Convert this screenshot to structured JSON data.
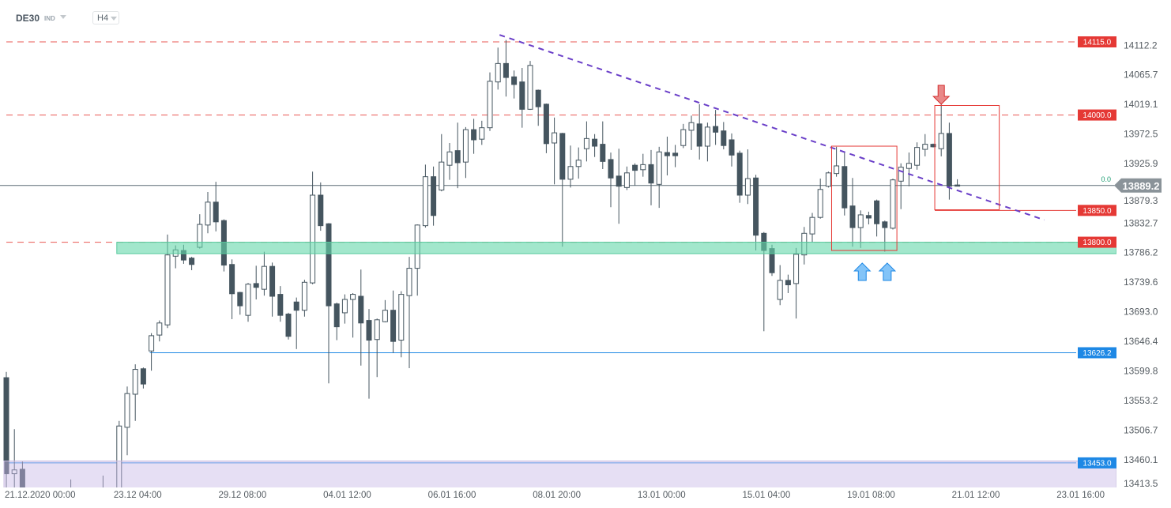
{
  "header": {
    "symbol": "DE30",
    "symbol_type": "IND",
    "timeframe": "H4"
  },
  "colors": {
    "bull_fill": "#ffffff",
    "candle": "#45555f",
    "resistance": "#e53935",
    "support_blue": "#1e88e5",
    "green_zone": "#64d7aa",
    "purple_zone": "#c8b9e6",
    "trendline": "#6a3fc8",
    "price_tag": "#8a9399",
    "current_line": "#1f9e74"
  },
  "chart_data": {
    "type": "candlestick",
    "instrument": "DE30",
    "timeframe": "H4",
    "ylim": [
      13413.5,
      14130
    ],
    "y_ticks": [
      "14112.2",
      "14065.7",
      "14019.1",
      "13972.5",
      "13925.9",
      "13879.3",
      "13832.7",
      "13786.2",
      "13739.6",
      "13693.0",
      "13646.4",
      "13599.8",
      "13553.2",
      "13506.7",
      "13460.1",
      "13413.5"
    ],
    "x_ticks": [
      {
        "index": 3.3,
        "label": "21.12.2020  00:00"
      },
      {
        "index": 16.3,
        "label": "23.12  04:00"
      },
      {
        "index": 29.3,
        "label": "29.12  08:00"
      },
      {
        "index": 42.3,
        "label": "04.01  12:00"
      },
      {
        "index": 55.3,
        "label": "06.01  16:00"
      },
      {
        "index": 68.3,
        "label": "08.01  20:00"
      },
      {
        "index": 81.3,
        "label": "13.01  00:00"
      },
      {
        "index": 94.3,
        "label": "15.01  04:00"
      },
      {
        "index": 107.3,
        "label": "19.01  08:00"
      },
      {
        "index": 120.3,
        "label": "21.01  12:00"
      },
      {
        "index": 133.3,
        "label": "23.01  16:00"
      }
    ],
    "ohlc_fields": [
      "open",
      "high",
      "low",
      "close"
    ],
    "candles": [
      [
        13587,
        13596,
        13410,
        13436
      ],
      [
        13436,
        13506,
        13410,
        13442
      ],
      [
        13443,
        13455,
        13390,
        13400
      ],
      [
        13400,
        13412,
        13380,
        13392
      ],
      [
        13392,
        13405,
        13375,
        13398
      ],
      [
        13398,
        13410,
        13385,
        13388
      ],
      [
        13388,
        13400,
        13370,
        13395
      ],
      [
        13395,
        13408,
        13380,
        13385
      ],
      [
        13385,
        13427,
        13372,
        13396
      ],
      [
        13396,
        13410,
        13380,
        13390
      ],
      [
        13390,
        13405,
        13375,
        13400
      ],
      [
        13400,
        13412,
        13385,
        13392
      ],
      [
        13392,
        13433,
        13378,
        13386
      ],
      [
        13386,
        13400,
        13370,
        13380
      ],
      [
        13380,
        13519,
        13370,
        13511
      ],
      [
        13509,
        13573,
        13465,
        13562
      ],
      [
        13561,
        13608,
        13519,
        13600
      ],
      [
        13601,
        13603,
        13570,
        13577
      ],
      [
        13629,
        13657,
        13598,
        13653
      ],
      [
        13654,
        13677,
        13644,
        13673
      ],
      [
        13670,
        13812,
        13665,
        13780
      ],
      [
        13778,
        13795,
        13759,
        13788
      ],
      [
        13787,
        13796,
        13766,
        13772
      ],
      [
        13775,
        13777,
        13756,
        13765
      ],
      [
        13792,
        13844,
        13790,
        13828
      ],
      [
        13827,
        13879,
        13814,
        13863
      ],
      [
        13863,
        13895,
        13817,
        13832
      ],
      [
        13834,
        13836,
        13754,
        13764
      ],
      [
        13765,
        13773,
        13679,
        13719
      ],
      [
        13721,
        13722,
        13686,
        13700
      ],
      [
        13685,
        13736,
        13675,
        13734
      ],
      [
        13735,
        13763,
        13710,
        13729
      ],
      [
        13726,
        13785,
        13716,
        13762
      ],
      [
        13762,
        13768,
        13683,
        13715
      ],
      [
        13718,
        13731,
        13675,
        13685
      ],
      [
        13687,
        13689,
        13647,
        13652
      ],
      [
        13706,
        13713,
        13632,
        13693
      ],
      [
        13693,
        13741,
        13683,
        13737
      ],
      [
        13736,
        13911,
        13734,
        13874
      ],
      [
        13874,
        13894,
        13818,
        13826
      ],
      [
        13829,
        13830,
        13578,
        13700
      ],
      [
        13703,
        13705,
        13646,
        13667
      ],
      [
        13689,
        13718,
        13672,
        13710
      ],
      [
        13710,
        13720,
        13650,
        13718
      ],
      [
        13715,
        13757,
        13606,
        13673
      ],
      [
        13677,
        13695,
        13554,
        13646
      ],
      [
        13647,
        13680,
        13588,
        13678
      ],
      [
        13675,
        13709,
        13674,
        13693
      ],
      [
        13693,
        13724,
        13626,
        13644
      ],
      [
        13646,
        13723,
        13619,
        13718
      ],
      [
        13716,
        13777,
        13602,
        13759
      ],
      [
        13759,
        13828,
        13716,
        13827
      ],
      [
        13826,
        13922,
        13823,
        13903
      ],
      [
        13903,
        13919,
        13826,
        13842
      ],
      [
        13882,
        13970,
        13880,
        13926
      ],
      [
        13921,
        13956,
        13898,
        13942
      ],
      [
        13944,
        13988,
        13885,
        13925
      ],
      [
        13926,
        13981,
        13901,
        13977
      ],
      [
        13977,
        13994,
        13939,
        13961
      ],
      [
        13962,
        13991,
        13953,
        13980
      ],
      [
        13980,
        14067,
        13975,
        14053
      ],
      [
        14052,
        14106,
        14040,
        14081
      ],
      [
        14081,
        14118,
        14029,
        14059
      ],
      [
        14060,
        14070,
        14026,
        14048
      ],
      [
        14052,
        14074,
        13980,
        14009
      ],
      [
        14009,
        14085,
        14008,
        14078
      ],
      [
        14039,
        14040,
        13983,
        14013
      ],
      [
        14017,
        14018,
        13940,
        13955
      ],
      [
        13956,
        13996,
        13891,
        13972
      ],
      [
        13971,
        13972,
        13793,
        13899
      ],
      [
        13899,
        13952,
        13886,
        13919
      ],
      [
        13919,
        13949,
        13900,
        13929
      ],
      [
        13947,
        13990,
        13927,
        13963
      ],
      [
        13962,
        13970,
        13934,
        13951
      ],
      [
        13954,
        13990,
        13915,
        13927
      ],
      [
        13930,
        13941,
        13855,
        13901
      ],
      [
        13904,
        13947,
        13829,
        13888
      ],
      [
        13886,
        13919,
        13882,
        13909
      ],
      [
        13921,
        13924,
        13889,
        13913
      ],
      [
        13914,
        13939,
        13903,
        13922
      ],
      [
        13922,
        13945,
        13858,
        13893
      ],
      [
        13891,
        13950,
        13854,
        13942
      ],
      [
        13941,
        13966,
        13905,
        13936
      ],
      [
        13940,
        13953,
        13918,
        13936
      ],
      [
        13952,
        13986,
        13948,
        13977
      ],
      [
        13976,
        13999,
        13945,
        13988
      ],
      [
        13986,
        14017,
        13930,
        13951
      ],
      [
        13951,
        13988,
        13927,
        13981
      ],
      [
        13982,
        14008,
        13953,
        13973
      ],
      [
        13975,
        13989,
        13946,
        13952
      ],
      [
        13961,
        13971,
        13919,
        13937
      ],
      [
        13940,
        13944,
        13862,
        13874
      ],
      [
        13874,
        13946,
        13860,
        13900
      ],
      [
        13901,
        13906,
        13787,
        13811
      ],
      [
        13814,
        13816,
        13660,
        13787
      ],
      [
        13790,
        13796,
        13747,
        13752
      ],
      [
        13710,
        13764,
        13701,
        13740
      ],
      [
        13740,
        13749,
        13720,
        13733
      ],
      [
        13735,
        13791,
        13680,
        13781
      ],
      [
        13780,
        13824,
        13765,
        13814
      ],
      [
        13813,
        13846,
        13800,
        13839
      ],
      [
        13839,
        13900,
        13837,
        13883
      ],
      [
        13888,
        13911,
        13886,
        13909
      ],
      [
        13908,
        13950,
        13903,
        13920
      ],
      [
        13919,
        13941,
        13842,
        13854
      ],
      [
        13857,
        13901,
        13793,
        13823
      ],
      [
        13823,
        13850,
        13791,
        13843
      ],
      [
        13842,
        13848,
        13828,
        13838
      ],
      [
        13865,
        13867,
        13809,
        13829
      ],
      [
        13832,
        13834,
        13785,
        13823
      ],
      [
        13822,
        13900,
        13820,
        13898
      ],
      [
        13896,
        13924,
        13852,
        13918
      ],
      [
        13916,
        13941,
        13888,
        13924
      ],
      [
        13921,
        13957,
        13914,
        13949
      ],
      [
        13946,
        13970,
        13935,
        13954
      ],
      [
        13954,
        13955,
        13949,
        13950
      ],
      [
        13947,
        14017,
        13935,
        13971
      ],
      [
        13971,
        13988,
        13867,
        13888
      ],
      [
        13890,
        13899,
        13888,
        13889.2
      ]
    ],
    "current_price": {
      "value": 13889.2,
      "label": "13889.2",
      "offset_label": "0.0"
    },
    "levels": [
      {
        "price": 14115.0,
        "label": "14115.0",
        "style": "dashed",
        "color": "#e53935",
        "from_index": 0
      },
      {
        "price": 14000.0,
        "label": "14000.0",
        "style": "dashed",
        "color": "#e53935",
        "from_index": 0
      },
      {
        "price": 13850.0,
        "label": "13850.0",
        "style": "solid",
        "color": "#e53935",
        "from_index": 115.2
      },
      {
        "price": 13800.0,
        "label": "13800.0",
        "style": "dashed",
        "color": "#e53935",
        "from_index": 0
      },
      {
        "price": 13626.2,
        "label": "13626.2",
        "style": "solid",
        "color": "#1e88e5",
        "from_index": 17.8
      },
      {
        "price": 13453.0,
        "label": "13453.0",
        "style": "solid",
        "color": "#1e88e5",
        "from_index": 0
      }
    ],
    "zones": [
      {
        "name": "support-zone",
        "from_index": 14,
        "price_low": 13782,
        "price_high": 13800,
        "color": "#64d7aa"
      },
      {
        "name": "lower-zone",
        "from_index": 0,
        "price_low": 13405,
        "price_high": 13456,
        "color": "#c8b9e6"
      }
    ],
    "trendline": {
      "from": [
        61.2,
        14126
      ],
      "to": [
        128.8,
        13835
      ]
    },
    "boxes": [
      {
        "from_index": 102.4,
        "to_index": 110.5,
        "price_high": 13951,
        "price_low": 13787
      },
      {
        "from_index": 115.2,
        "to_index": 123.2,
        "price_high": 14015,
        "price_low": 13851
      }
    ],
    "arrows": [
      {
        "direction": "up",
        "index": 106.2,
        "color": "#64b5f6"
      },
      {
        "direction": "up",
        "index": 109.3,
        "color": "#64b5f6"
      },
      {
        "direction": "down",
        "index": 116,
        "color": "#e57373"
      }
    ]
  }
}
